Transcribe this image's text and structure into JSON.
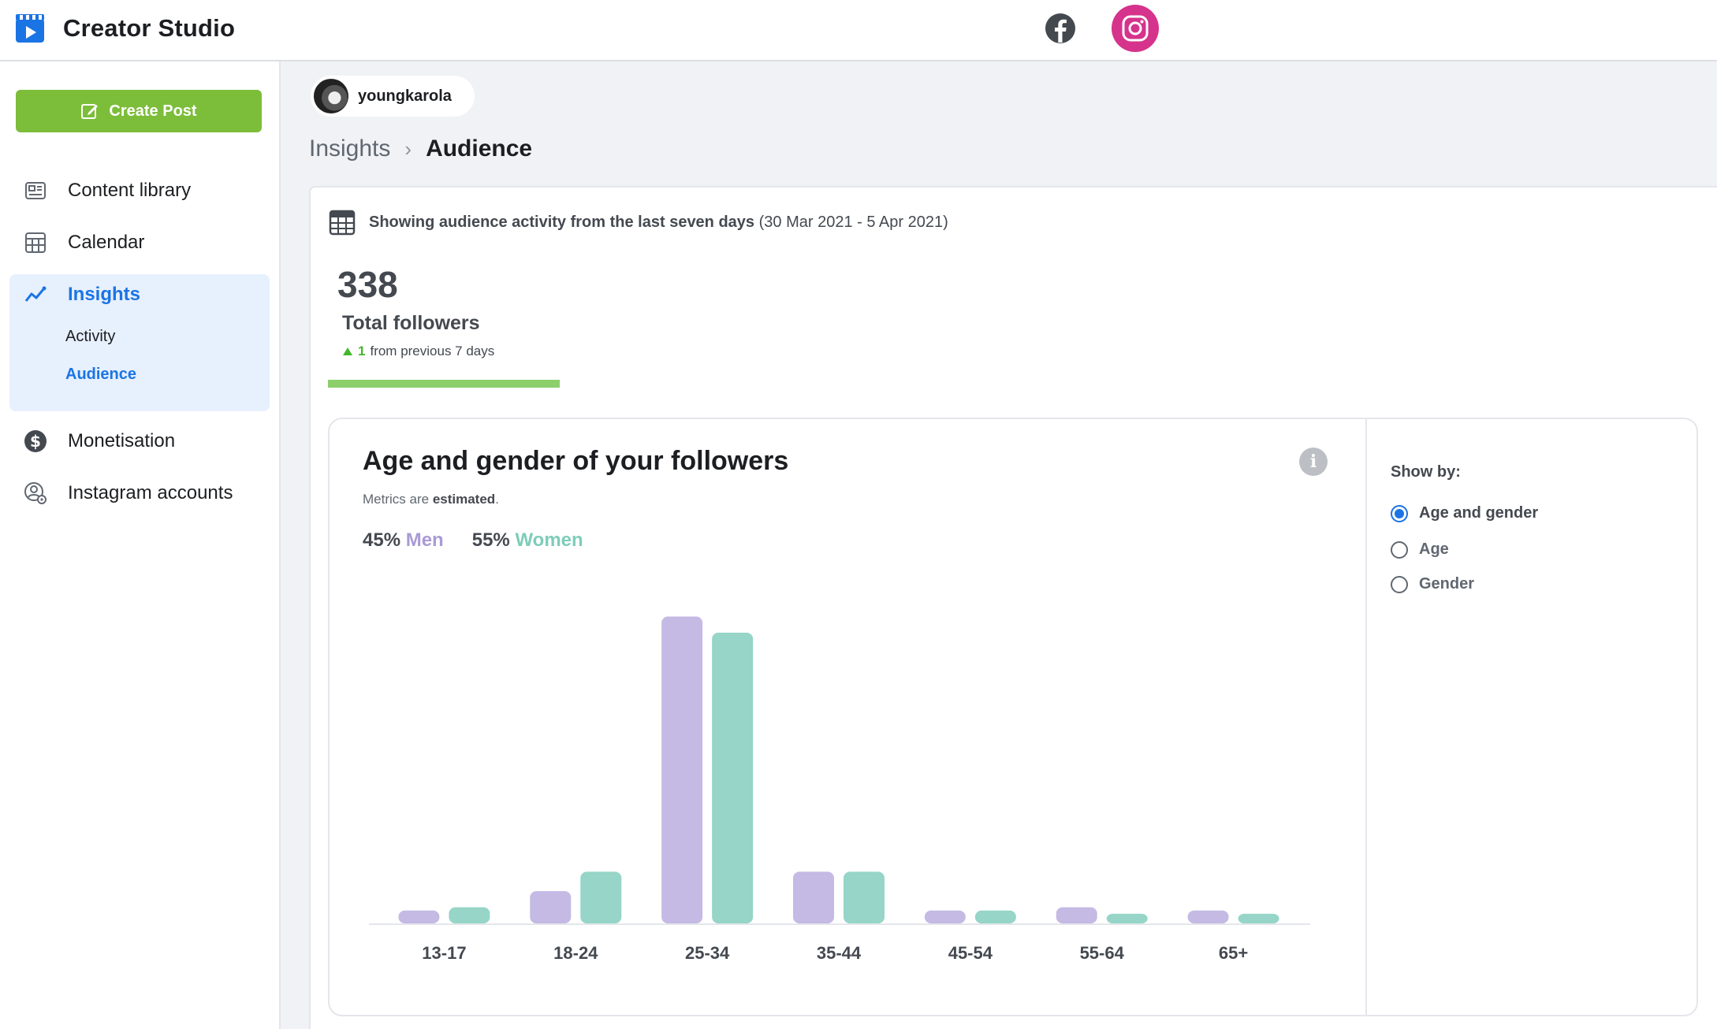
{
  "app": {
    "title": "Creator Studio"
  },
  "platforms": {
    "facebook_icon": "facebook-icon",
    "instagram_icon": "instagram-icon",
    "active": "instagram",
    "instagram_color": "#d6338c"
  },
  "sidebar": {
    "create_post": "Create Post",
    "items": [
      {
        "label": "Content library",
        "icon": "content-library-icon"
      },
      {
        "label": "Calendar",
        "icon": "calendar-icon"
      },
      {
        "label": "Insights",
        "icon": "insights-icon",
        "active": true
      },
      {
        "label": "Monetisation",
        "icon": "dollar-icon"
      },
      {
        "label": "Instagram accounts",
        "icon": "account-gear-icon"
      }
    ],
    "insights_sub": [
      {
        "label": "Activity",
        "active": false
      },
      {
        "label": "Audience",
        "active": true
      }
    ]
  },
  "account": {
    "name": "youngkarola"
  },
  "breadcrumb": {
    "parent": "Insights",
    "current": "Audience"
  },
  "summary": {
    "date_text_bold": "Showing audience activity from the last seven days",
    "date_range": "(30 Mar 2021 - 5 Apr 2021)",
    "total_followers": "338",
    "total_label": "Total followers",
    "delta_value": "1",
    "delta_text": "from previous 7 days"
  },
  "panel": {
    "title": "Age and gender of your followers",
    "note_prefix": "Metrics are",
    "note_bold": "estimated",
    "note_suffix": ".",
    "men_pct": "45%",
    "men_label": "Men",
    "women_pct": "55%",
    "women_label": "Women",
    "info_glyph": "i"
  },
  "show_by": {
    "label": "Show by:",
    "options": [
      {
        "label": "Age and gender",
        "checked": true
      },
      {
        "label": "Age",
        "checked": false
      },
      {
        "label": "Gender",
        "checked": false
      }
    ]
  },
  "chart_data": {
    "type": "bar",
    "categories": [
      "13-17",
      "18-24",
      "25-34",
      "35-44",
      "45-54",
      "55-64",
      "65+"
    ],
    "series": [
      {
        "name": "Men",
        "color": "#c4bae4",
        "values": [
          4,
          10,
          95,
          16,
          4,
          5,
          4
        ]
      },
      {
        "name": "Women",
        "color": "#96d5c7",
        "values": [
          5,
          16,
          90,
          16,
          4,
          3,
          3
        ]
      }
    ],
    "ylim": [
      0,
      100
    ],
    "grid": false,
    "legend": "top-left"
  }
}
